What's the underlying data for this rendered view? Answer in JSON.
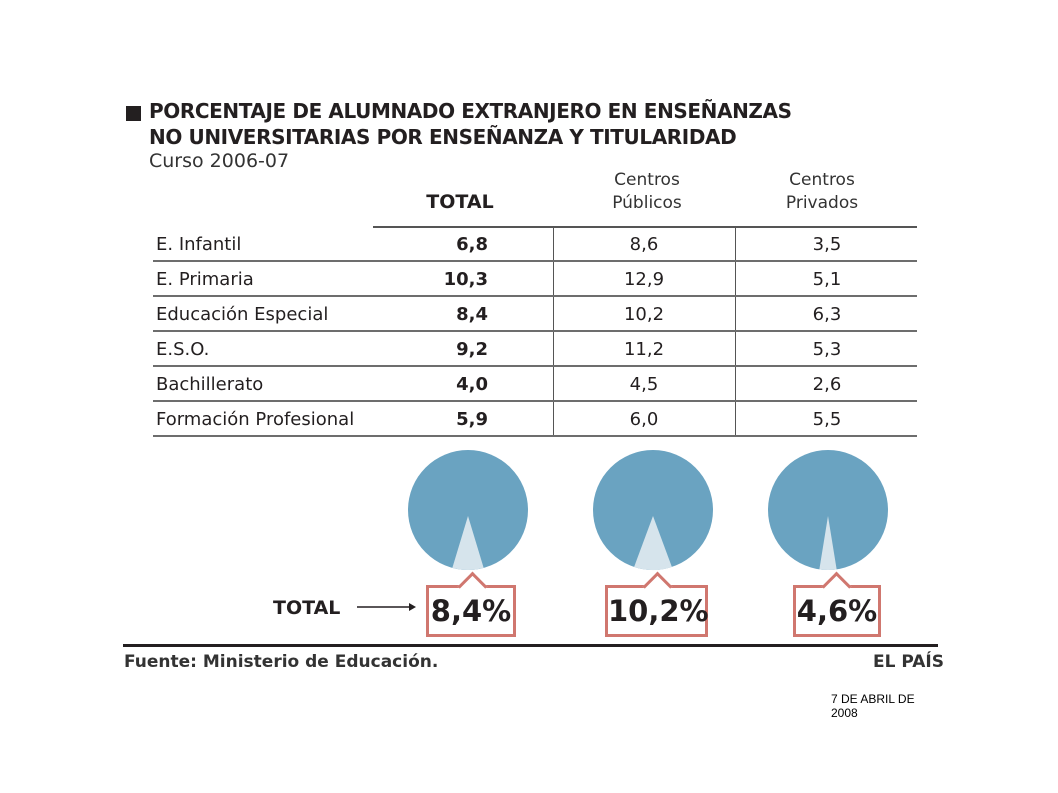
{
  "header": {
    "title_line_1": "PORCENTAJE DE ALUMNADO EXTRANJERO EN ENSEÑANZAS",
    "title_line_2": "NO UNIVERSITARIAS POR ENSEÑANZA Y TITULARIDAD",
    "subtitle": "Curso 2006-07"
  },
  "table": {
    "columns": {
      "total": "TOTAL",
      "publicos_l1": "Centros",
      "publicos_l2": "Públicos",
      "privados_l1": "Centros",
      "privados_l2": "Privados"
    },
    "rows": [
      {
        "label": "E. Infantil",
        "total": "6,8",
        "publicos": "8,6",
        "privados": "3,5"
      },
      {
        "label": "E. Primaria",
        "total": "10,3",
        "publicos": "12,9",
        "privados": "5,1"
      },
      {
        "label": "Educación Especial",
        "total": "8,4",
        "publicos": "10,2",
        "privados": "6,3"
      },
      {
        "label": "E.S.O.",
        "total": "9,2",
        "publicos": "11,2",
        "privados": "5,3"
      },
      {
        "label": "Bachillerato",
        "total": "4,0",
        "publicos": "4,5",
        "privados": "2,6"
      },
      {
        "label": "Formación Profesional",
        "total": "5,9",
        "publicos": "6,0",
        "privados": "5,5"
      }
    ]
  },
  "totals": {
    "label": "TOTAL",
    "total_text": "8,4%",
    "publicos_text": "10,2%",
    "privados_text": "4,6%"
  },
  "footer": {
    "source": "Fuente: Ministerio de Educación.",
    "brand": "EL PAÍS",
    "date": "7 DE ABRIL DE 2008"
  },
  "colors": {
    "pie_fill": "#6aa3c1",
    "pie_slice": "#d6e4ec",
    "badge_border": "#d0776f"
  },
  "chart_data": [
    {
      "type": "table",
      "columns": [
        "TOTAL",
        "Centros Públicos",
        "Centros Privados"
      ],
      "rows": [
        "E. Infantil",
        "E. Primaria",
        "Educación Especial",
        "E.S.O.",
        "Bachillerato",
        "Formación Profesional"
      ],
      "series": [
        {
          "name": "TOTAL",
          "values": [
            6.8,
            10.3,
            8.4,
            9.2,
            4.0,
            5.9
          ]
        },
        {
          "name": "Centros Públicos",
          "values": [
            8.6,
            12.9,
            10.2,
            11.2,
            4.5,
            6.0
          ]
        },
        {
          "name": "Centros Privados",
          "values": [
            3.5,
            5.1,
            6.3,
            5.3,
            2.6,
            5.5
          ]
        }
      ],
      "title": "PORCENTAJE DE ALUMNADO EXTRANJERO EN ENSEÑANZAS NO UNIVERSITARIAS POR ENSEÑANZA Y TITULARIDAD",
      "subtitle": "Curso 2006-07"
    },
    {
      "type": "pie",
      "categories": [
        "TOTAL",
        "Centros Públicos",
        "Centros Privados"
      ],
      "values": [
        8.4,
        10.2,
        4.6
      ]
    }
  ]
}
